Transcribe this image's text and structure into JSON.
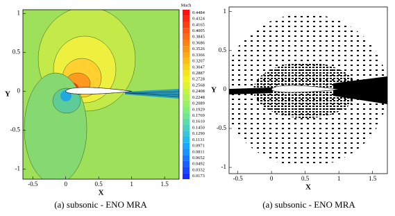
{
  "chart_data": [
    {
      "type": "contour",
      "xlabel": "X",
      "ylabel": "Y",
      "caption": "(a) subsonic - ENO MRA",
      "xlim": [
        -0.65,
        1.72
      ],
      "ylim": [
        -1.13,
        1.05
      ],
      "xticks": [
        -0.5,
        0,
        0.5,
        1,
        1.5
      ],
      "yticks": [
        -1,
        -0.5,
        0,
        0.5,
        1
      ],
      "colorbar_title": "Mach",
      "colormap": [
        "#1a2cff",
        "#19b4ff",
        "#7ef07a",
        "#f5f51e",
        "#ff8a14",
        "#ff1010"
      ],
      "levels": [
        0.4484,
        0.4324,
        0.4165,
        0.4005,
        0.3845,
        0.3686,
        0.3526,
        0.3366,
        0.3207,
        0.3047,
        0.2887,
        0.2728,
        0.2568,
        0.2408,
        0.2248,
        0.2089,
        0.1929,
        0.1769,
        {
          "value": 0.161,
          "label": "0.1610"
        },
        {
          "value": 0.145,
          "label": "0.1450"
        },
        {
          "value": 0.129,
          "label": "0.1290"
        },
        0.1131,
        0.0971,
        0.0811,
        0.0652,
        0.0492,
        0.0332,
        0.0173
      ]
    },
    {
      "type": "mesh",
      "xlabel": "X",
      "ylabel": "Y",
      "caption": "(a) subsonic - ENO MRA",
      "xlim": [
        -0.63,
        1.72
      ],
      "ylim": [
        -1.08,
        1.06
      ],
      "xticks": [
        -0.5,
        0,
        0.5,
        1,
        1.5
      ],
      "yticks": [
        -1,
        -0.5,
        0,
        0.5,
        1
      ]
    }
  ]
}
